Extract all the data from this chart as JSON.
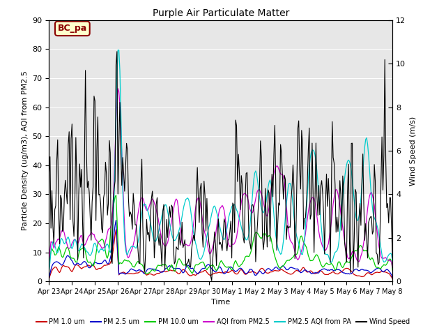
{
  "title": "Purple Air Particulate Matter",
  "ylabel_left": "Particle Density (ug/m3), AQI from PM2.5",
  "ylabel_right": "Wind Speed (m/s)",
  "xlabel": "Time",
  "ylim_left": [
    0,
    90
  ],
  "ylim_right": [
    0,
    12
  ],
  "yticks_left": [
    0,
    10,
    20,
    30,
    40,
    50,
    60,
    70,
    80,
    90
  ],
  "yticks_right": [
    0,
    2,
    4,
    6,
    8,
    10,
    12
  ],
  "label_box": "BC_pa",
  "label_box_bg": "#ffffcc",
  "label_box_edge": "#8b0000",
  "label_box_text": "#8b0000",
  "x_tick_labels": [
    "Apr 23",
    "Apr 24",
    "Apr 25",
    "Apr 26",
    "Apr 27",
    "Apr 28",
    "Apr 29",
    "Apr 30",
    "May 1",
    "May 2",
    "May 3",
    "May 4",
    "May 5",
    "May 6",
    "May 7",
    "May 8"
  ],
  "bg_band1": [
    60,
    90
  ],
  "bg_band2": [
    30,
    60
  ],
  "bg_color": "#d8d8d8",
  "colors": {
    "pm1": "#cc0000",
    "pm25": "#0000cc",
    "pm10": "#00cc00",
    "aqi": "#cc00cc",
    "pa": "#00cccc",
    "wind": "#000000"
  },
  "seed": 7
}
